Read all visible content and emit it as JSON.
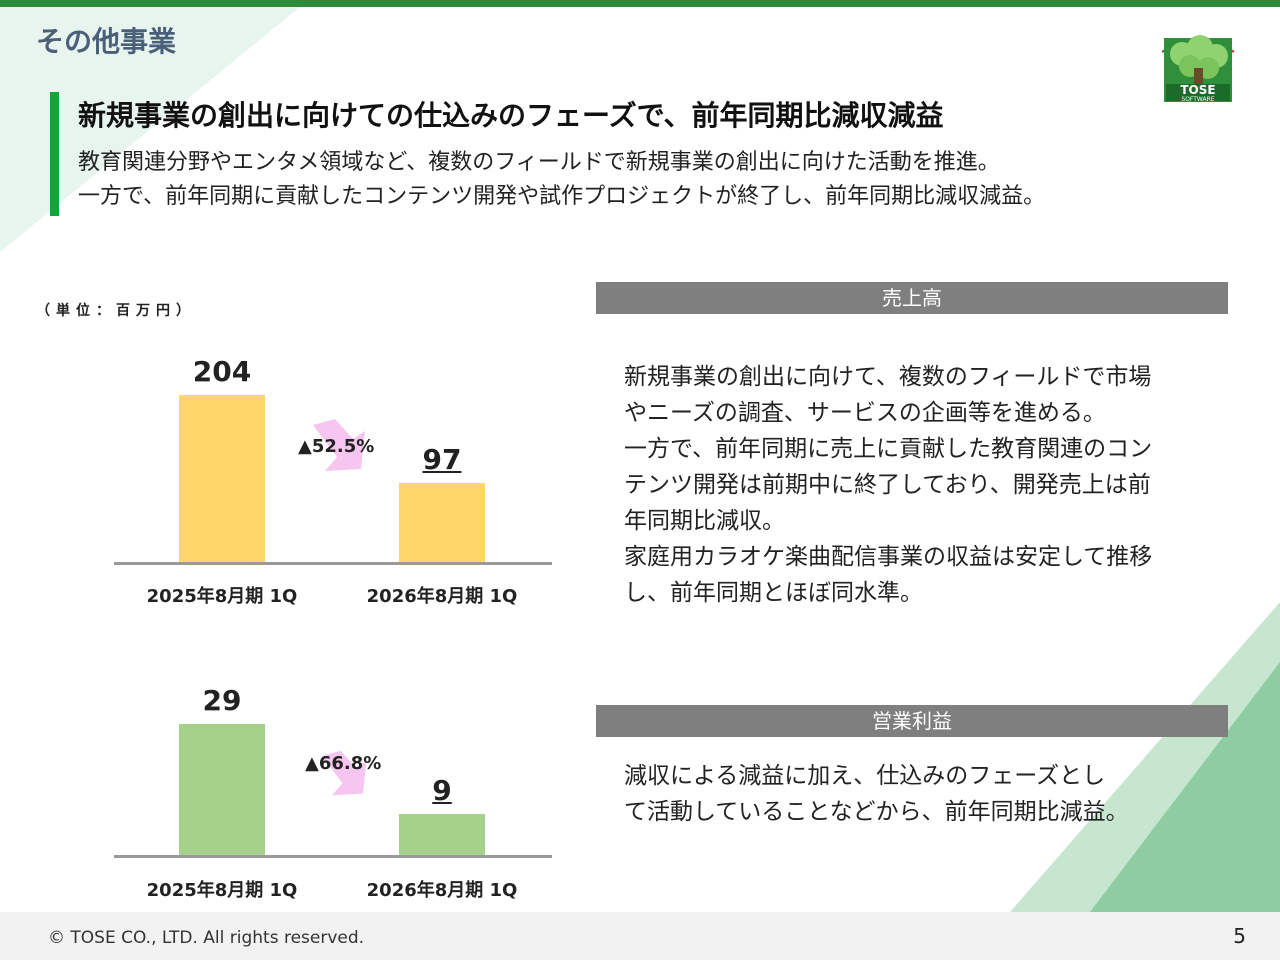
{
  "section_title": "その他事業",
  "headline": "新規事業の創出に向けての仕込みのフェーズで、前年同期比減収減益",
  "summary_lines": [
    "教育関連分野やエンタメ領域など、複数のフィールドで新規事業の創出に向けた活動を推進。",
    "一方で、前年同期に貢献したコンテンツ開発や試作プロジェクトが終了し、前年同期比減収減益。"
  ],
  "logo": {
    "text_main": "TOSE",
    "text_sub": "SOFTWARE"
  },
  "unit_label": "（単位：百万円）",
  "chart_data": [
    {
      "type": "bar",
      "title": "売上高",
      "categories": [
        "2025年8月期 1Q",
        "2026年8月期 1Q"
      ],
      "values": [
        204,
        97
      ],
      "value_labels": [
        "204",
        "97"
      ],
      "change_label": "▲52.5%",
      "ylim": [
        0,
        220
      ],
      "color": "#fcd668"
    },
    {
      "type": "bar",
      "title": "営業利益",
      "categories": [
        "2025年8月期 1Q",
        "2026年8月期 1Q"
      ],
      "values": [
        29,
        9
      ],
      "value_labels": [
        "29",
        "9"
      ],
      "change_label": "▲66.8%",
      "ylim": [
        0,
        31
      ],
      "color": "#a6d18a"
    }
  ],
  "panels": [
    {
      "header": "売上高",
      "lines": [
        "新規事業の創出に向けて、複数のフィールドで市場",
        "やニーズの調査、サービスの企画等を進める。",
        "一方で、前年同期に売上に貢献した教育関連のコン",
        "テンツ開発は前期中に終了しており、開発売上は前",
        "年同期比減収。",
        "家庭用カラオケ楽曲配信事業の収益は安定して推移",
        "し、前年同期とほぼ同水準。"
      ]
    },
    {
      "header": "営業利益",
      "lines": [
        "減収による減益に加え、仕込みのフェーズとし",
        "て活動していることなどから、前年同期比減益。"
      ]
    }
  ],
  "footer": {
    "copyright": "© TOSE CO., LTD. All rights reserved.",
    "page_number": "5"
  },
  "colors": {
    "accent_green": "#12a53a",
    "top_bar": "#2e8b3c",
    "arrow_pink": "#f6c6f0"
  }
}
